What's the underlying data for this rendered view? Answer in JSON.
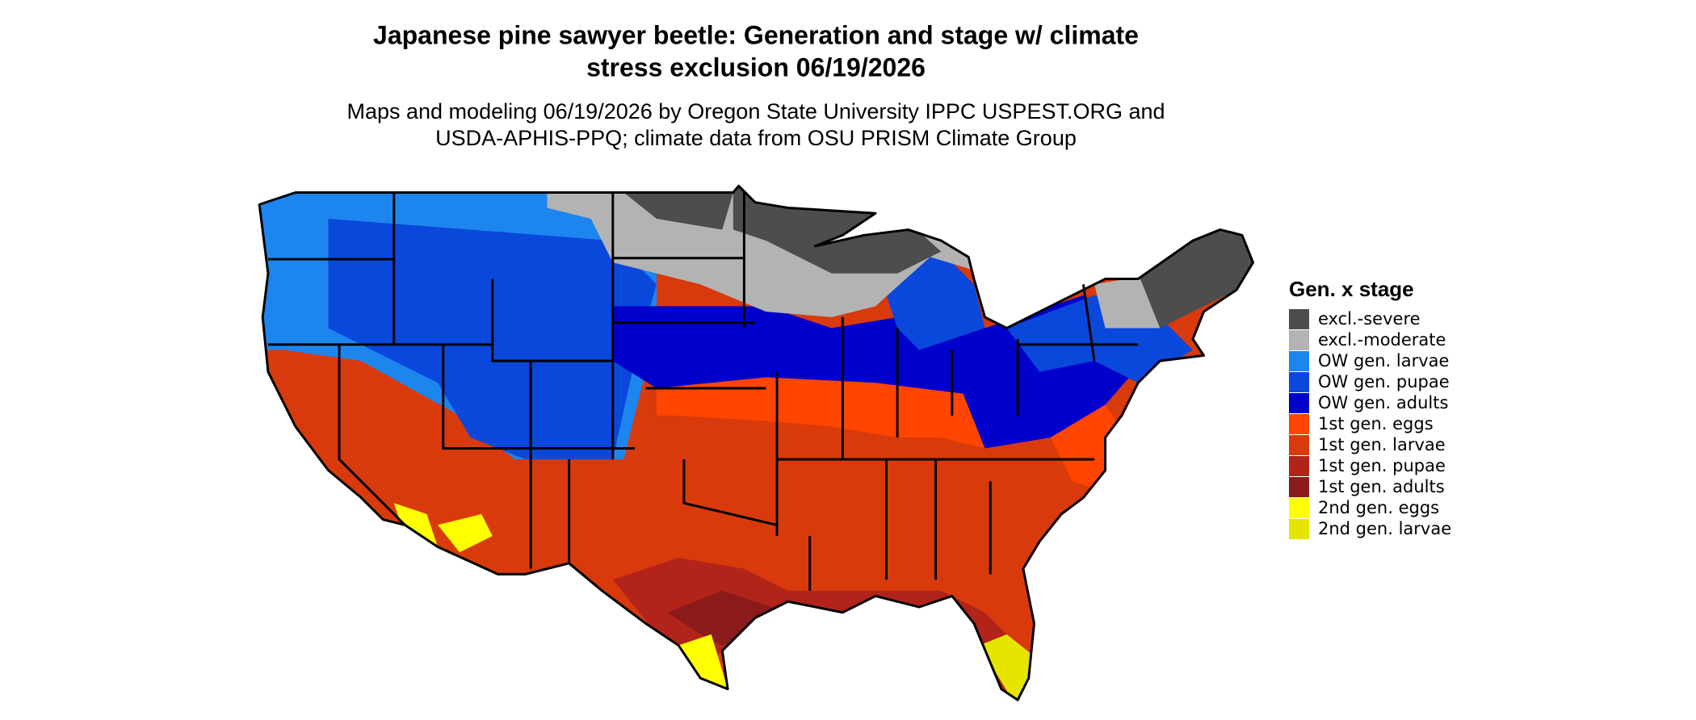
{
  "header": {
    "title": [
      "Japanese pine sawyer beetle: Generation and stage w/ climate",
      "stress exclusion 06/19/2026"
    ],
    "subtitle": [
      "Maps and modeling 06/19/2026 by Oregon State University IPPC USPEST.ORG and",
      "USDA-APHIS-PPQ; climate data from OSU PRISM Climate Group"
    ]
  },
  "legend": {
    "title": "Gen. x stage",
    "items": [
      {
        "label": "excl.-severe",
        "color": "#4d4d4d"
      },
      {
        "label": "excl.-moderate",
        "color": "#b3b3b3"
      },
      {
        "label": "OW gen. larvae",
        "color": "#1c86ee"
      },
      {
        "label": "OW gen. pupae",
        "color": "#0a48dc"
      },
      {
        "label": "OW gen. adults",
        "color": "#0000cd"
      },
      {
        "label": "1st gen. eggs",
        "color": "#ff4500"
      },
      {
        "label": "1st gen. larvae",
        "color": "#d93a0c"
      },
      {
        "label": "1st gen. pupae",
        "color": "#b2241a"
      },
      {
        "label": "1st gen. adults",
        "color": "#8b1a1a"
      },
      {
        "label": "2nd gen. eggs",
        "color": "#ffff00"
      },
      {
        "label": "2nd gen. larvae",
        "color": "#e5e500"
      }
    ]
  }
}
